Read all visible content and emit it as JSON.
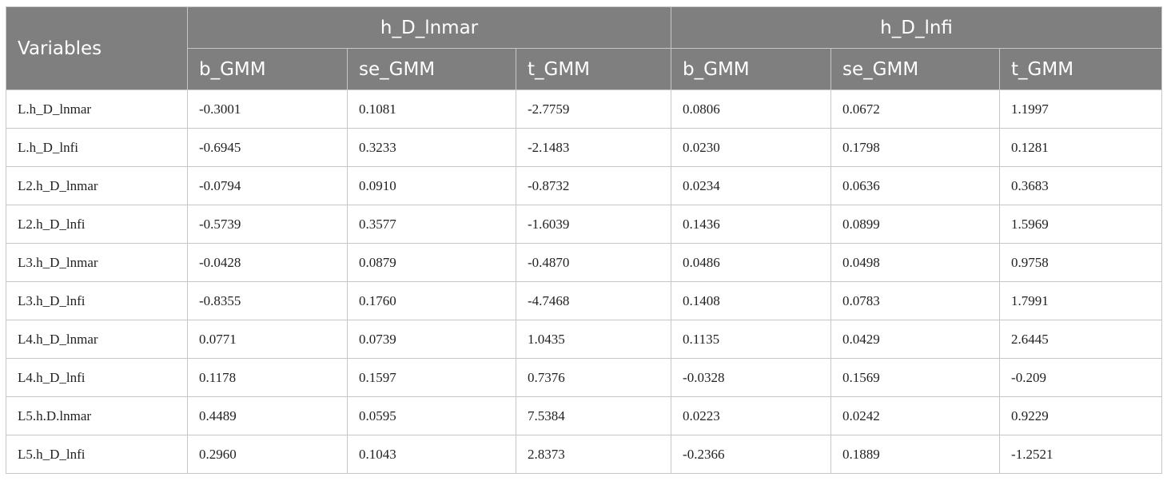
{
  "header": {
    "variables_label": "Variables",
    "groups": [
      "h_D_lnmar",
      "h_D_lnfi"
    ],
    "subheaders": [
      "b_GMM",
      "se_GMM",
      "t_GMM",
      "b_GMM",
      "se_GMM",
      "t_GMM"
    ]
  },
  "rows": [
    {
      "variable": "L.h_D_lnmar",
      "cells": [
        "-0.3001",
        "0.1081",
        "-2.7759",
        "0.0806",
        "0.0672",
        "1.1997"
      ]
    },
    {
      "variable": "L.h_D_lnfi",
      "cells": [
        "-0.6945",
        "0.3233",
        "-2.1483",
        "0.0230",
        "0.1798",
        "0.1281"
      ]
    },
    {
      "variable": "L2.h_D_lnmar",
      "cells": [
        "-0.0794",
        "0.0910",
        "-0.8732",
        "0.0234",
        "0.0636",
        "0.3683"
      ]
    },
    {
      "variable": "L2.h_D_lnfi",
      "cells": [
        "-0.5739",
        "0.3577",
        "-1.6039",
        "0.1436",
        "0.0899",
        "1.5969"
      ]
    },
    {
      "variable": "L3.h_D_lnmar",
      "cells": [
        "-0.0428",
        "0.0879",
        "-0.4870",
        "0.0486",
        "0.0498",
        "0.9758"
      ]
    },
    {
      "variable": "L3.h_D_lnfi",
      "cells": [
        "-0.8355",
        "0.1760",
        "-4.7468",
        "0.1408",
        "0.0783",
        "1.7991"
      ]
    },
    {
      "variable": "L4.h_D_lnmar",
      "cells": [
        "0.0771",
        "0.0739",
        "1.0435",
        "0.1135",
        "0.0429",
        "2.6445"
      ]
    },
    {
      "variable": "L4.h_D_lnfi",
      "cells": [
        "0.1178",
        "0.1597",
        "0.7376",
        "-0.0328",
        "0.1569",
        "-0.209"
      ]
    },
    {
      "variable": "L5.h.D.lnmar",
      "cells": [
        "0.4489",
        "0.0595",
        "7.5384",
        "0.0223",
        "0.0242",
        "0.9229"
      ]
    },
    {
      "variable": "L5.h_D_lnfi",
      "cells": [
        "0.2960",
        "0.1043",
        "2.8373",
        "-0.2366",
        "0.1889",
        "-1.2521"
      ]
    }
  ]
}
